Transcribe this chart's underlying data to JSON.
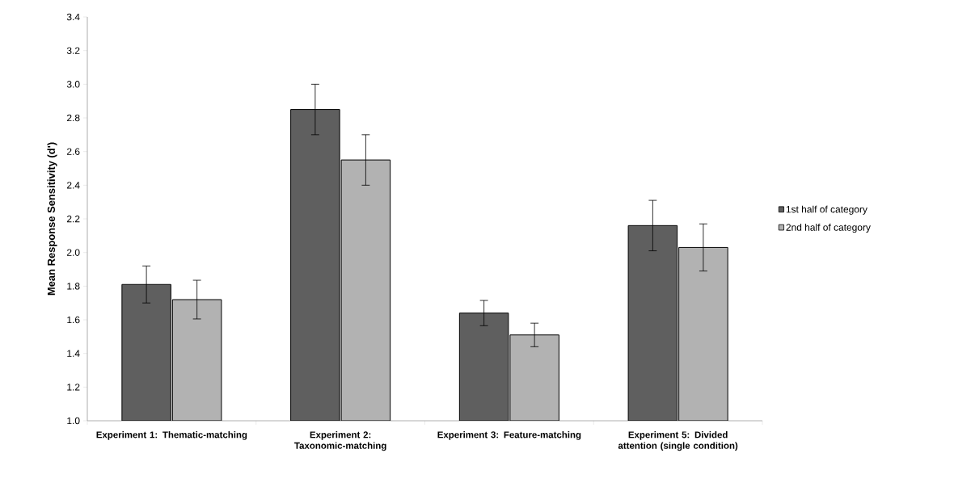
{
  "chart_data": {
    "type": "bar",
    "ylabel": "Mean Response Sensitivity (d')",
    "categories": [
      "Experiment 1: Thematic-matching",
      "Experiment 2: Taxonomic-matching",
      "Experiment 3: Feature-matching",
      "Experiment 5: Divided attention (single condition)"
    ],
    "series": [
      {
        "name": "1st half of category",
        "color": "#5f5f5f",
        "values": [
          1.81,
          2.85,
          1.64,
          2.16
        ],
        "errors": [
          0.11,
          0.15,
          0.075,
          0.15
        ]
      },
      {
        "name": "2nd half of category",
        "color": "#b2b2b2",
        "values": [
          1.72,
          2.55,
          1.51,
          2.03
        ],
        "errors": [
          0.115,
          0.15,
          0.07,
          0.14
        ]
      }
    ],
    "ylim": [
      1.0,
      3.4
    ],
    "yticks": [
      {
        "value": 1.0,
        "label": "1.0"
      },
      {
        "value": 1.2,
        "label": "1.2"
      },
      {
        "value": 1.4,
        "label": "1.4"
      },
      {
        "value": 1.6,
        "label": "1.6"
      },
      {
        "value": 1.8,
        "label": "1.8"
      },
      {
        "value": 2.0,
        "label": "2.0"
      },
      {
        "value": 2.2,
        "label": "2.2"
      },
      {
        "value": 2.4,
        "label": "2.4"
      },
      {
        "value": 2.6,
        "label": "2.6"
      },
      {
        "value": 2.8,
        "label": "2.8"
      },
      {
        "value": 3.0,
        "label": "3.0"
      },
      {
        "value": 3.2,
        "label": "3.2"
      },
      {
        "value": 3.4,
        "label": "3.4"
      }
    ],
    "legend": "right",
    "grid": false
  }
}
